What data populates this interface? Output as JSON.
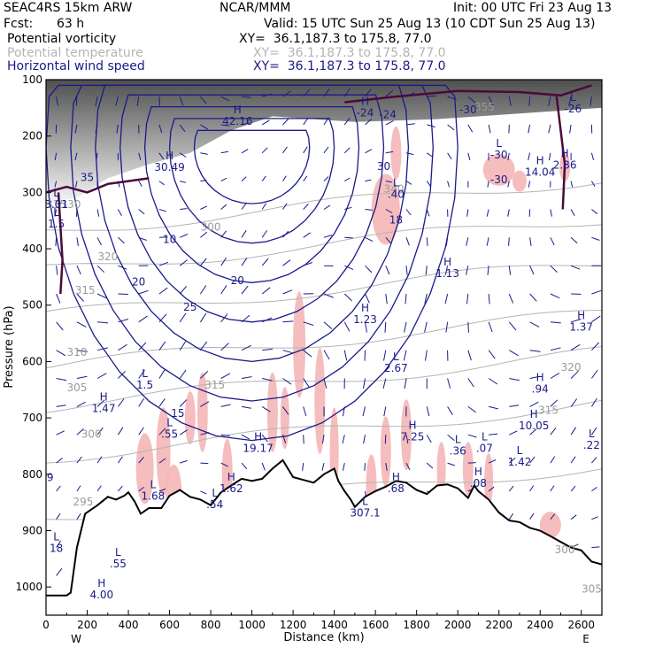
{
  "header": {
    "model": "SEAC4RS 15km ARW",
    "org": "NCAR/MMM",
    "init": "Init: 00 UTC Fri 23 Aug 13",
    "fcst_label": "Fcst:",
    "fcst_value": "63 h",
    "valid": "Valid: 15 UTC Sun 25 Aug 13 (10 CDT Sun 25 Aug 13)"
  },
  "fields": [
    {
      "name": "Potential vorticity",
      "xy": "XY=  36.1,187.3 to 175.8, 77.0",
      "color": "#000000"
    },
    {
      "name": "Potential temperature",
      "xy": "XY=  36.1,187.3 to 175.8, 77.0",
      "color": "#b4b4b4"
    },
    {
      "name": "Horizontal wind speed",
      "xy": "XY=  36.1,187.3 to 175.8, 77.0",
      "color": "#1a1a8a"
    }
  ],
  "chart_data": {
    "type": "cross-section",
    "xlabel": "Distance (km)",
    "ylabel": "Pressure (hPa)",
    "xlim": [
      0,
      2700
    ],
    "ylim": [
      1050,
      100
    ],
    "x_ticks": [
      0,
      200,
      400,
      600,
      800,
      1000,
      1200,
      1400,
      1600,
      1800,
      2000,
      2200,
      2400,
      2600
    ],
    "y_ticks": [
      100,
      200,
      300,
      400,
      500,
      600,
      700,
      800,
      900,
      1000
    ],
    "left_end": "W",
    "right_end": "E",
    "colors": {
      "pv_contour": "#4a0a3a",
      "theta": "#b4b4b4",
      "wind": "#1a1a8a",
      "shading": "#f4b6b6",
      "terrain": "#000000"
    },
    "terrain": [
      [
        0,
        1015
      ],
      [
        50,
        1015
      ],
      [
        100,
        1015
      ],
      [
        120,
        1010
      ],
      [
        150,
        930
      ],
      [
        190,
        870
      ],
      [
        250,
        855
      ],
      [
        300,
        840
      ],
      [
        340,
        845
      ],
      [
        380,
        838
      ],
      [
        400,
        832
      ],
      [
        430,
        848
      ],
      [
        460,
        870
      ],
      [
        480,
        865
      ],
      [
        500,
        860
      ],
      [
        530,
        860
      ],
      [
        560,
        860
      ],
      [
        600,
        838
      ],
      [
        650,
        828
      ],
      [
        700,
        840
      ],
      [
        750,
        845
      ],
      [
        800,
        855
      ],
      [
        850,
        832
      ],
      [
        900,
        820
      ],
      [
        950,
        808
      ],
      [
        1000,
        812
      ],
      [
        1050,
        808
      ],
      [
        1100,
        790
      ],
      [
        1150,
        775
      ],
      [
        1200,
        805
      ],
      [
        1250,
        810
      ],
      [
        1300,
        815
      ],
      [
        1350,
        800
      ],
      [
        1400,
        790
      ],
      [
        1420,
        812
      ],
      [
        1450,
        830
      ],
      [
        1480,
        845
      ],
      [
        1500,
        858
      ],
      [
        1550,
        840
      ],
      [
        1600,
        830
      ],
      [
        1650,
        822
      ],
      [
        1700,
        812
      ],
      [
        1750,
        815
      ],
      [
        1800,
        828
      ],
      [
        1850,
        835
      ],
      [
        1900,
        820
      ],
      [
        1950,
        818
      ],
      [
        2000,
        825
      ],
      [
        2050,
        842
      ],
      [
        2080,
        820
      ],
      [
        2100,
        830
      ],
      [
        2150,
        845
      ],
      [
        2200,
        868
      ],
      [
        2250,
        882
      ],
      [
        2300,
        885
      ],
      [
        2350,
        895
      ],
      [
        2400,
        900
      ],
      [
        2450,
        910
      ],
      [
        2500,
        920
      ],
      [
        2550,
        930
      ],
      [
        2600,
        935
      ],
      [
        2650,
        955
      ],
      [
        2700,
        960
      ]
    ],
    "pv_labels": [
      {
        "kind": "H",
        "value": "30.49",
        "x": 600,
        "p": 262
      },
      {
        "kind": "L",
        "value": "3.01",
        "x": 50,
        "p": 328
      },
      {
        "kind": "H",
        "value": "42.16",
        "x": 930,
        "p": 180
      },
      {
        "kind": "L",
        "value": "2.67",
        "x": 1700,
        "p": 618
      },
      {
        "kind": "H",
        "value": "1.13",
        "x": 1950,
        "p": 450
      },
      {
        "kind": "H",
        "value": "1.23",
        "x": 1550,
        "p": 532
      },
      {
        "kind": "H",
        "value": "1.47",
        "x": 280,
        "p": 690
      },
      {
        "kind": "L",
        "value": ".55",
        "x": 600,
        "p": 735
      },
      {
        "kind": "H",
        "value": "19.17",
        "x": 1030,
        "p": 760
      },
      {
        "kind": "H",
        "value": "7.25",
        "x": 1780,
        "p": 740
      },
      {
        "kind": "L",
        "value": ".36",
        "x": 2000,
        "p": 765
      },
      {
        "kind": "L",
        "value": ".07",
        "x": 2130,
        "p": 760
      },
      {
        "kind": "H",
        "value": "10.05",
        "x": 2370,
        "p": 720
      },
      {
        "kind": "L",
        "value": ".22",
        "x": 2650,
        "p": 755
      },
      {
        "kind": "H",
        "value": ".94",
        "x": 2400,
        "p": 655
      },
      {
        "kind": "H",
        "value": "1.37",
        "x": 2600,
        "p": 545
      },
      {
        "kind": "L",
        "value": "1.42",
        "x": 2300,
        "p": 785
      },
      {
        "kind": "H",
        "value": ".08",
        "x": 2100,
        "p": 822
      },
      {
        "kind": "H",
        "value": ".68",
        "x": 1700,
        "p": 832
      },
      {
        "kind": "H",
        "value": "1.62",
        "x": 900,
        "p": 832
      },
      {
        "kind": "L",
        "value": "1.68",
        "x": 520,
        "p": 845
      },
      {
        "kind": "L",
        "value": ".54",
        "x": 820,
        "p": 860
      },
      {
        "kind": "L",
        "value": "307.1",
        "x": 1550,
        "p": 875
      },
      {
        "kind": "L",
        "value": "18",
        "x": 50,
        "p": 938
      },
      {
        "kind": "L",
        "value": ".55",
        "x": 350,
        "p": 965
      },
      {
        "kind": "H",
        "value": "4.00",
        "x": 270,
        "p": 1020
      },
      {
        "kind": "L",
        "value": "-30",
        "x": 2200,
        "p": 240
      },
      {
        "kind": "H",
        "value": "14.04",
        "x": 2400,
        "p": 270
      },
      {
        "kind": "H",
        "value": "2.86",
        "x": 2520,
        "p": 258
      },
      {
        "kind": "L",
        "value": "1.5",
        "x": 50,
        "p": 362
      },
      {
        "kind": "L",
        "value": "1.5",
        "x": 480,
        "p": 648
      },
      {
        "kind": "L",
        "value": ".40",
        "x": 1700,
        "p": 310
      },
      {
        "kind": "H",
        "value": "-24",
        "x": 1550,
        "p": 165
      },
      {
        "kind": "L",
        "value": "-26",
        "x": 2560,
        "p": 158
      }
    ],
    "theta_labels": [
      {
        "value": "295",
        "x": 180,
        "p": 855
      },
      {
        "value": "300",
        "x": 220,
        "p": 735
      },
      {
        "value": "305",
        "x": 150,
        "p": 653
      },
      {
        "value": "310",
        "x": 150,
        "p": 590
      },
      {
        "value": "315",
        "x": 190,
        "p": 480
      },
      {
        "value": "320",
        "x": 300,
        "p": 420
      },
      {
        "value": "330",
        "x": 120,
        "p": 328
      },
      {
        "value": "335",
        "x": 50,
        "p": 328
      },
      {
        "value": "340",
        "x": 1690,
        "p": 300
      },
      {
        "value": "355",
        "x": 2130,
        "p": 155
      },
      {
        "value": "315",
        "x": 2440,
        "p": 693
      },
      {
        "value": "320",
        "x": 2550,
        "p": 617
      },
      {
        "value": "300",
        "x": 2520,
        "p": 940
      },
      {
        "value": "305",
        "x": 2650,
        "p": 1010
      },
      {
        "value": "315",
        "x": 820,
        "p": 648
      },
      {
        "value": "300",
        "x": 800,
        "p": 368
      }
    ],
    "wind_labels": [
      {
        "value": "35",
        "x": 200,
        "p": 280
      },
      {
        "value": "30",
        "x": 1640,
        "p": 260
      },
      {
        "value": "25",
        "x": 700,
        "p": 510
      },
      {
        "value": "20",
        "x": 450,
        "p": 465
      },
      {
        "value": "20",
        "x": 930,
        "p": 463
      },
      {
        "value": "15",
        "x": 640,
        "p": 698
      },
      {
        "value": "10",
        "x": 600,
        "p": 390
      },
      {
        "value": "18",
        "x": 1700,
        "p": 355
      },
      {
        "value": "9",
        "x": 20,
        "p": 812
      },
      {
        "value": "-24",
        "x": 1660,
        "p": 168
      },
      {
        "value": "-30",
        "x": 2050,
        "p": 160
      },
      {
        "value": "-30",
        "x": 2200,
        "p": 284
      }
    ]
  }
}
